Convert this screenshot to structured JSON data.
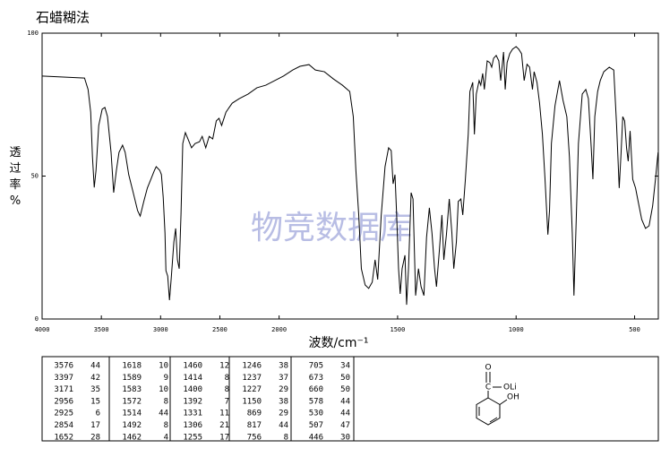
{
  "chart_data": {
    "type": "line",
    "title": "石蜡糊法",
    "xlabel": "波数/cm⁻¹",
    "ylabel": "透过率%",
    "watermark": "物竞数据库",
    "color": "#000000",
    "xlim": [
      4000,
      400
    ],
    "xticks": [
      4000,
      3500,
      3000,
      2500,
      2000,
      1500,
      1000,
      500
    ],
    "xscale_break": 2000,
    "xscale_factor": 2,
    "ylim": [
      0,
      100
    ],
    "yticks": [
      0,
      50,
      100
    ],
    "x": [
      4000,
      3642,
      3612,
      3590,
      3575,
      3560,
      3545,
      3522,
      3493,
      3470,
      3448,
      3418,
      3396,
      3373,
      3351,
      3321,
      3299,
      3269,
      3231,
      3194,
      3172,
      3142,
      3112,
      3082,
      3052,
      3037,
      3007,
      2993,
      2978,
      2963,
      2955,
      2940,
      2925,
      2910,
      2888,
      2873,
      2858,
      2843,
      2828,
      2813,
      2791,
      2769,
      2739,
      2709,
      2672,
      2649,
      2619,
      2590,
      2560,
      2530,
      2507,
      2485,
      2448,
      2396,
      2336,
      2261,
      2187,
      2112,
      2037,
      1981,
      1943,
      1912,
      1874,
      1847,
      1809,
      1771,
      1733,
      1702,
      1687,
      1676,
      1664,
      1653,
      1637,
      1622,
      1607,
      1595,
      1584,
      1569,
      1553,
      1538,
      1527,
      1519,
      1511,
      1504,
      1496,
      1489,
      1481,
      1469,
      1462,
      1454,
      1443,
      1435,
      1424,
      1412,
      1401,
      1389,
      1378,
      1366,
      1355,
      1344,
      1336,
      1324,
      1313,
      1305,
      1294,
      1282,
      1271,
      1263,
      1252,
      1244,
      1233,
      1225,
      1214,
      1202,
      1195,
      1183,
      1176,
      1168,
      1156,
      1149,
      1141,
      1134,
      1122,
      1111,
      1103,
      1095,
      1084,
      1073,
      1065,
      1053,
      1046,
      1038,
      1027,
      1015,
      1000,
      989,
      977,
      966,
      954,
      943,
      931,
      924,
      912,
      901,
      889,
      878,
      866,
      859,
      851,
      836,
      817,
      802,
      786,
      775,
      763,
      756,
      748,
      737,
      721,
      706,
      695,
      683,
      676,
      668,
      656,
      645,
      630,
      607,
      588,
      576,
      565,
      557,
      550,
      542,
      534,
      527,
      519,
      508,
      496,
      485,
      470,
      454,
      439,
      424,
      412,
      401
    ],
    "values": [
      85,
      84.3,
      80.3,
      72.4,
      56.7,
      46,
      52,
      67.7,
      73.4,
      74,
      70.8,
      58.3,
      44.2,
      52,
      58.3,
      60.8,
      58.3,
      50.5,
      44.2,
      37.9,
      36,
      41.1,
      45.8,
      48.9,
      52,
      53.3,
      52,
      50.5,
      42.6,
      30.1,
      16.9,
      15,
      6.6,
      14.4,
      27,
      31.7,
      20.7,
      17.6,
      36.4,
      61.4,
      65.2,
      63,
      59.9,
      61.4,
      62,
      63.9,
      59.9,
      63.9,
      63,
      69.3,
      70.2,
      67.7,
      72.4,
      75.5,
      77.1,
      78.7,
      80.9,
      81.8,
      83.4,
      85,
      87.1,
      88.4,
      89,
      87.1,
      86.5,
      84,
      81.8,
      79.6,
      70.8,
      52,
      36.4,
      17.6,
      11.9,
      10.7,
      12.9,
      20.7,
      13.8,
      36.4,
      53.3,
      59.9,
      58.9,
      47.3,
      50.5,
      36.4,
      17.6,
      8.8,
      17.6,
      22.3,
      5,
      17.6,
      44.2,
      42,
      8.2,
      17.6,
      11.3,
      8.2,
      28.5,
      38.9,
      30.1,
      17.6,
      11.3,
      23.8,
      36.4,
      20.7,
      29.5,
      42,
      30.1,
      17.6,
      27,
      41.1,
      42,
      36.4,
      48.9,
      64.6,
      79.6,
      82.8,
      64.6,
      78.7,
      83.4,
      81.8,
      85.9,
      80.3,
      90.3,
      89.7,
      88.1,
      91.2,
      92.2,
      90.3,
      83.4,
      93.4,
      80.3,
      89.7,
      92.8,
      94.4,
      95.3,
      94.4,
      92.8,
      83.4,
      89.1,
      88.1,
      80.3,
      86.5,
      82.8,
      75.5,
      64.6,
      48.9,
      29.5,
      38,
      61.4,
      74.6,
      83.4,
      76.5,
      70.8,
      56.7,
      30.1,
      8.2,
      30.1,
      61.4,
      78.7,
      80.3,
      77.1,
      59.9,
      48.9,
      70.8,
      79.6,
      83.4,
      86.5,
      88.1,
      87.1,
      67.7,
      45.8,
      58.3,
      70.8,
      69.3,
      59.9,
      55.2,
      65.8,
      48.9,
      45.8,
      41.1,
      34.8,
      31.7,
      32.6,
      39.5,
      48.9,
      58.3
    ]
  },
  "peak_table": {
    "columns": [
      [
        [
          3576,
          44
        ],
        [
          3397,
          42
        ],
        [
          3171,
          35
        ],
        [
          2956,
          15
        ],
        [
          2925,
          6
        ],
        [
          2854,
          17
        ],
        [
          1652,
          28
        ]
      ],
      [
        [
          1618,
          10
        ],
        [
          1589,
          9
        ],
        [
          1583,
          10
        ],
        [
          1572,
          8
        ],
        [
          1514,
          44
        ],
        [
          1492,
          8
        ],
        [
          1462,
          4
        ]
      ],
      [
        [
          1460,
          12
        ],
        [
          1414,
          8
        ],
        [
          1400,
          8
        ],
        [
          1392,
          7
        ],
        [
          1331,
          11
        ],
        [
          1306,
          21
        ],
        [
          1255,
          17
        ]
      ],
      [
        [
          1246,
          38
        ],
        [
          1237,
          37
        ],
        [
          1227,
          29
        ],
        [
          1150,
          38
        ],
        [
          869,
          29
        ],
        [
          817,
          44
        ],
        [
          756,
          8
        ]
      ],
      [
        [
          705,
          34
        ],
        [
          673,
          50
        ],
        [
          660,
          50
        ],
        [
          578,
          44
        ],
        [
          530,
          44
        ],
        [
          507,
          47
        ],
        [
          446,
          30
        ]
      ]
    ]
  },
  "structure": {
    "labels": [
      "O",
      "C",
      "OLi",
      "OH"
    ]
  }
}
